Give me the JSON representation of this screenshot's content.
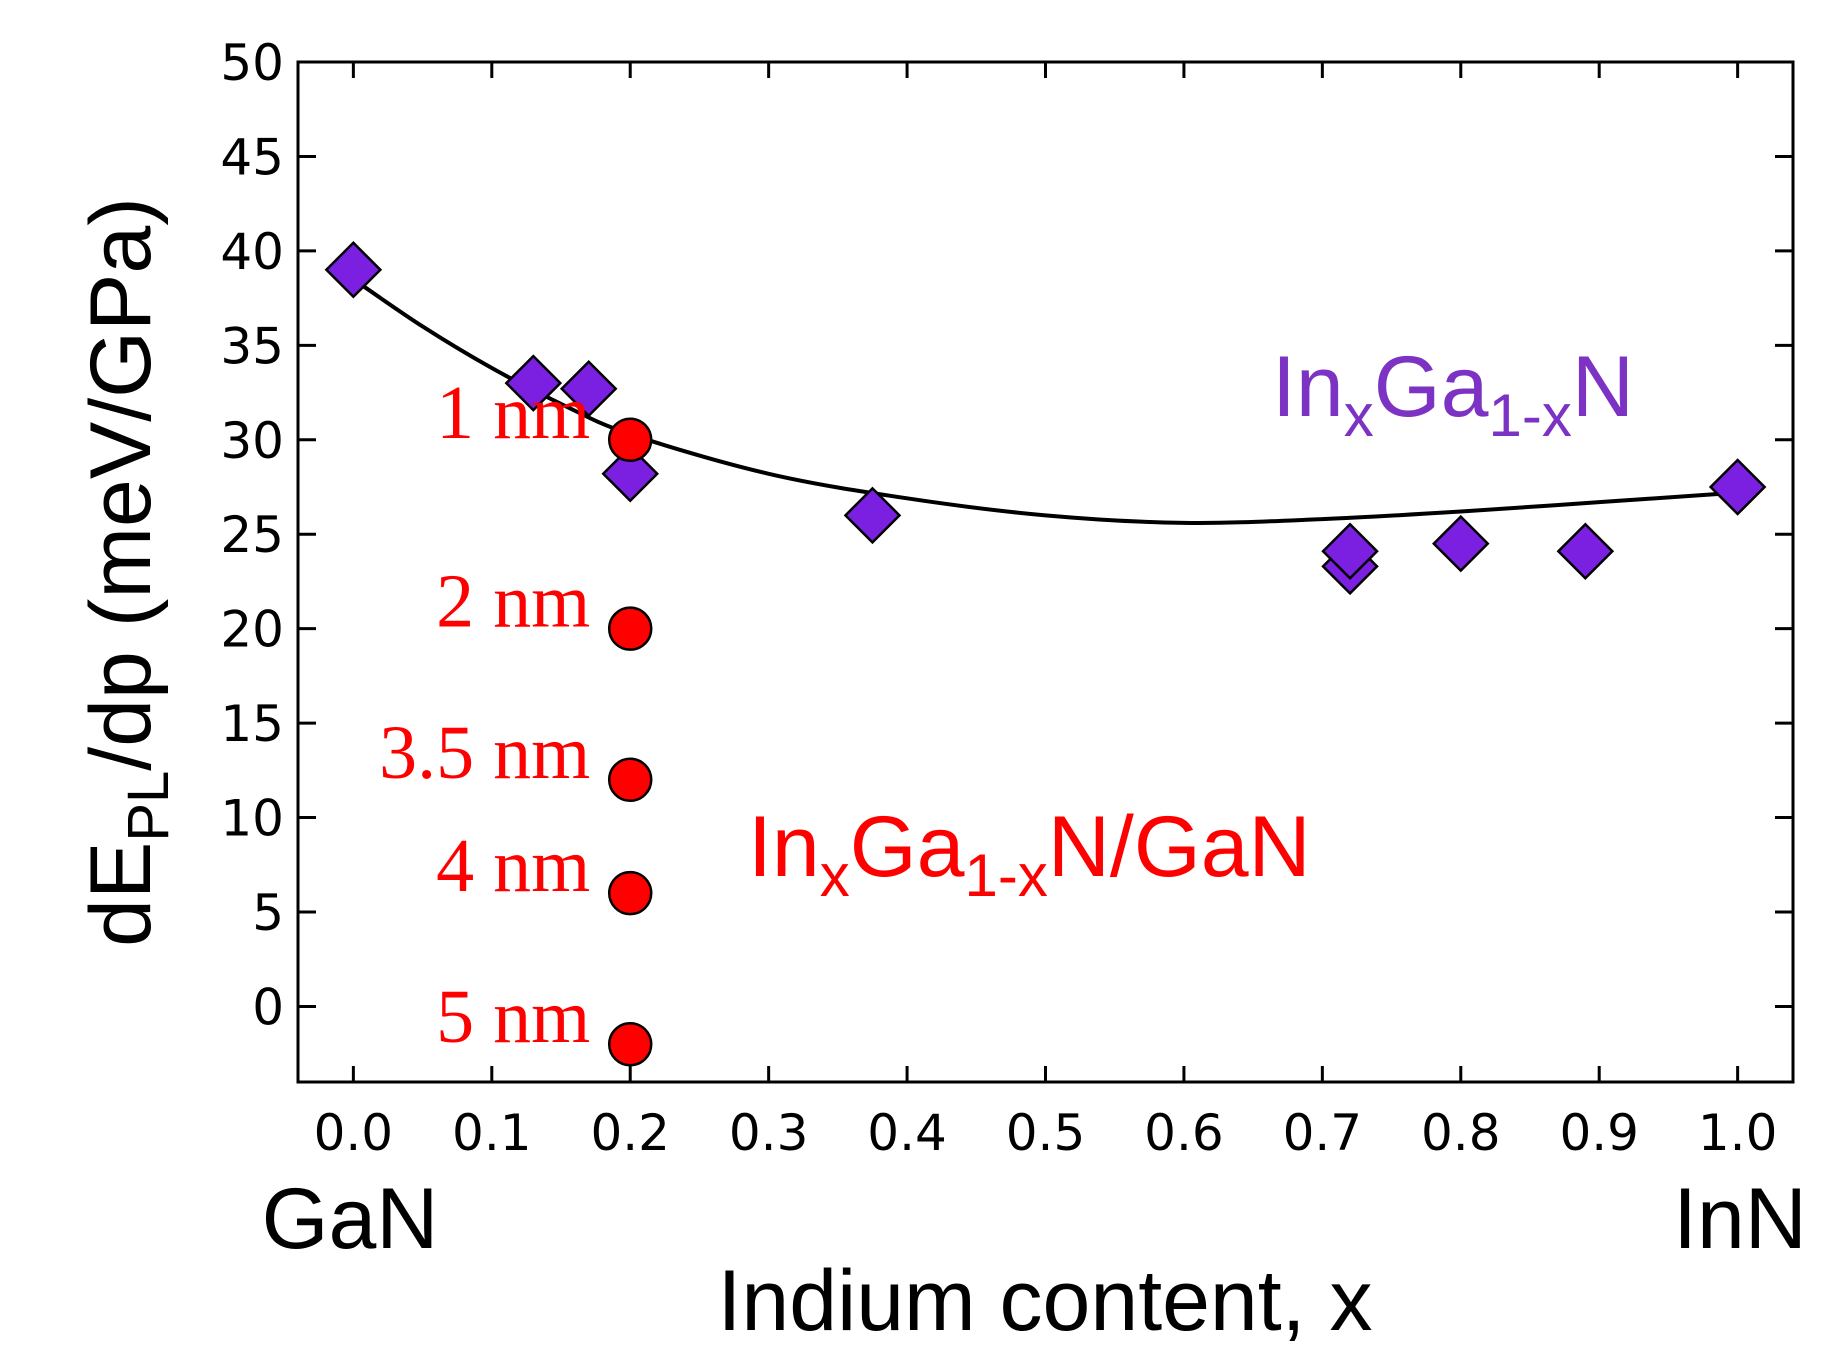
{
  "chart_data": {
    "type": "scatter",
    "xlabel": "Indium content, x",
    "ylabel": "dE",
    "ylabel_sub": "PL",
    "ylabel_rest": "/dp (meV/GPa)",
    "xlim": [
      -0.04,
      1.04
    ],
    "ylim": [
      -4,
      50
    ],
    "x_ticks": [
      0.0,
      0.1,
      0.2,
      0.3,
      0.4,
      0.5,
      0.6,
      0.7,
      0.8,
      0.9,
      1.0
    ],
    "x_tick_labels": [
      "0.0",
      "0.1",
      "0.2",
      "0.3",
      "0.4",
      "0.5",
      "0.6",
      "0.7",
      "0.8",
      "0.9",
      "1.0"
    ],
    "y_ticks": [
      0,
      5,
      10,
      15,
      20,
      25,
      30,
      35,
      40,
      45,
      50
    ],
    "y_tick_labels": [
      "0",
      "5",
      "10",
      "15",
      "20",
      "25",
      "30",
      "35",
      "40",
      "45",
      "50"
    ],
    "x_end_labels": {
      "left": "GaN",
      "right": "InN"
    },
    "grid": false,
    "colors": {
      "alloy": "#7b1fe0",
      "alloy_text": "#7c33c4",
      "qw": "#ff0000",
      "fit": "#000000"
    },
    "series": [
      {
        "marker": "diamond",
        "color": "#7b1fe0",
        "points": [
          {
            "x": 0.0,
            "y": 39.0
          },
          {
            "x": 0.13,
            "y": 33.0
          },
          {
            "x": 0.17,
            "y": 32.7
          },
          {
            "x": 0.2,
            "y": 28.2
          },
          {
            "x": 0.375,
            "y": 26.0
          },
          {
            "x": 0.72,
            "y": 23.3
          },
          {
            "x": 0.72,
            "y": 24.1
          },
          {
            "x": 0.8,
            "y": 24.5
          },
          {
            "x": 0.89,
            "y": 24.1
          },
          {
            "x": 1.0,
            "y": 27.5
          }
        ]
      },
      {
        "marker": "circle",
        "color": "#ff0000",
        "points": [
          {
            "x": 0.2,
            "y": 30.0
          },
          {
            "x": 0.2,
            "y": 20.0
          },
          {
            "x": 0.2,
            "y": 12.0
          },
          {
            "x": 0.2,
            "y": 6.0
          },
          {
            "x": 0.2,
            "y": -2.0
          }
        ]
      }
    ],
    "fit_curve": {
      "x": [
        0.0,
        0.05,
        0.1,
        0.15,
        0.2,
        0.3,
        0.4,
        0.5,
        0.6,
        0.7,
        0.8,
        0.9,
        1.0
      ],
      "y": [
        38.5,
        36.0,
        33.8,
        31.9,
        30.3,
        28.2,
        26.9,
        26.0,
        25.6,
        25.8,
        26.2,
        26.7,
        27.2
      ]
    },
    "annotations": {
      "alloy_label": {
        "main": "In",
        "sub1": "x",
        "mid": "Ga",
        "sub2": "1-x",
        "end": "N"
      },
      "qw_label": {
        "main": "In",
        "sub1": "x",
        "mid": "Ga",
        "sub2": "1-x",
        "end": "N/GaN"
      },
      "thickness_labels": [
        {
          "text": "1 nm",
          "y": 30.0
        },
        {
          "text": "2 nm",
          "y": 20.0
        },
        {
          "text": "3.5 nm",
          "y": 12.0
        },
        {
          "text": "4 nm",
          "y": 6.0
        },
        {
          "text": "5 nm",
          "y": -2.0
        }
      ]
    }
  }
}
